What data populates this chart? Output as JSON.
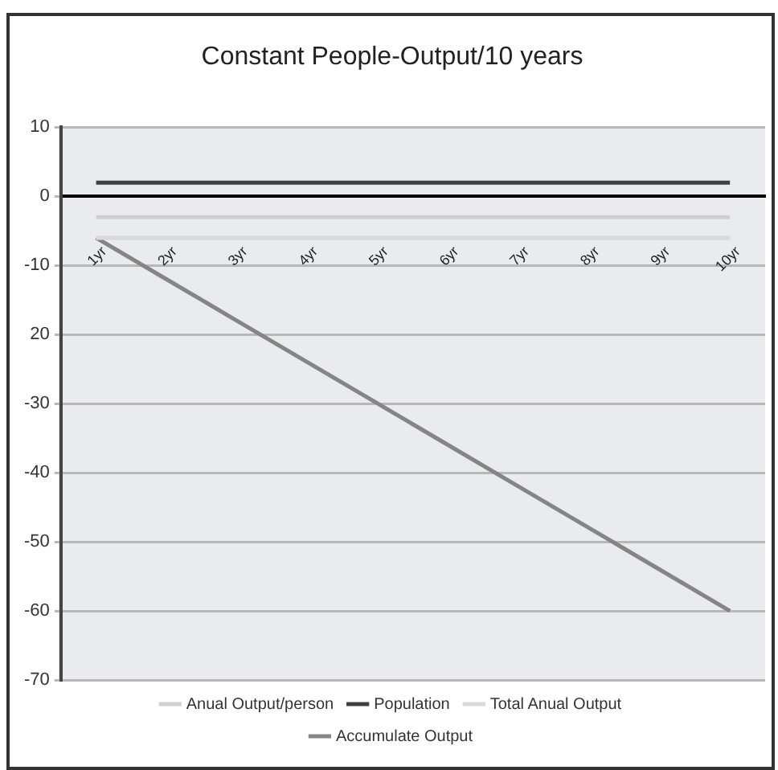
{
  "chart_data": {
    "type": "line",
    "title": "Constant People-Output/10 years",
    "categories": [
      "1yr",
      "2yr",
      "3yr",
      "4yr",
      "5yr",
      "6yr",
      "7yr",
      "8yr",
      "9yr",
      "10yr"
    ],
    "series": [
      {
        "name": "Anual Output/person",
        "color": "#cfcfcf",
        "values": [
          -3,
          -3,
          -3,
          -3,
          -3,
          -3,
          -3,
          -3,
          -3,
          -3
        ]
      },
      {
        "name": "Population",
        "color": "#404040",
        "values": [
          2,
          2,
          2,
          2,
          2,
          2,
          2,
          2,
          2,
          2
        ]
      },
      {
        "name": "Total Anual Output",
        "color": "#d9d9d9",
        "values": [
          -6,
          -6,
          -6,
          -6,
          -6,
          -6,
          -6,
          -6,
          -6,
          -6
        ]
      },
      {
        "name": "Accumulate Output",
        "color": "#858585",
        "values": [
          -6,
          -12,
          -18,
          -24,
          -30,
          -36,
          -42,
          -48,
          -54,
          -60
        ]
      }
    ],
    "ylim": [
      -70,
      10
    ],
    "yticks": [
      10,
      0,
      -10,
      {
        "value": -20,
        "label": "20"
      },
      -30,
      -40,
      -50,
      -60,
      -70
    ],
    "grid": "y",
    "legend": "bottom",
    "marker": "none",
    "line_style": "solid"
  }
}
